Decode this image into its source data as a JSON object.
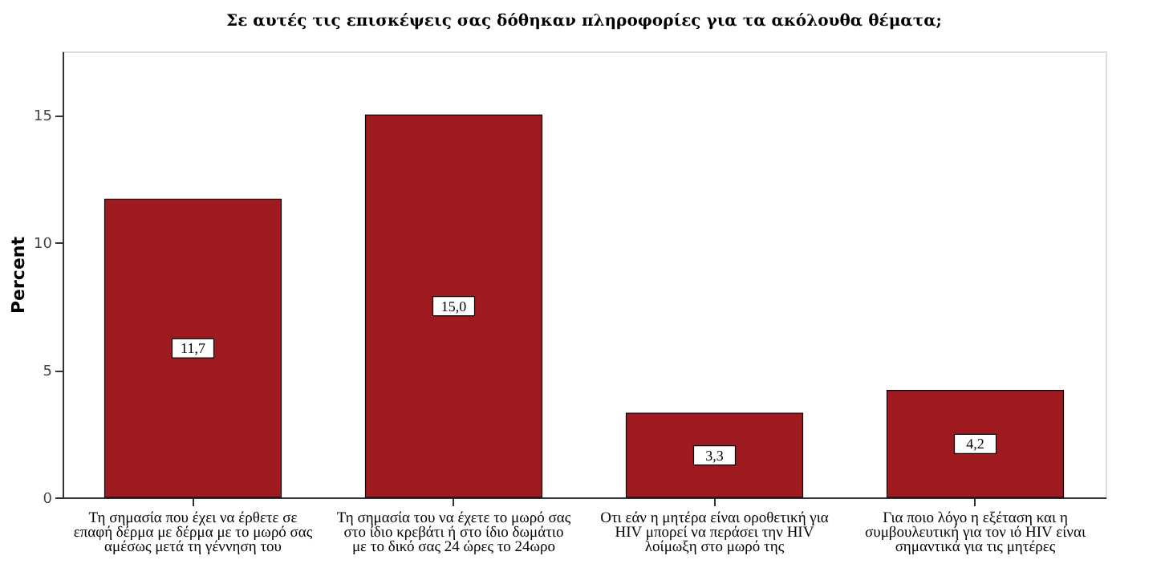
{
  "chart_data": {
    "type": "bar",
    "title": "Σε αυτές τις επισκέψεις σας δόθηκαν πληροφορίες για τα ακόλουθα θέματα;",
    "ylabel": "Percent",
    "categories": [
      "Τη σημασία που έχει να έρθετε σε επαφή δέρμα με δέρμα με το μωρό σας αμέσως μετά τη γέννηση του",
      "Τη σημασία του να έχετε το μωρό σας στο ίδιο κρεβάτι ή στο ίδιο δωμάτιο με το δικό σας 24 ώρες το 24ωρο",
      "Οτι εάν η μητέρα είναι οροθετική για HIV μπορεί να περάσει την HIV λοίμωξη στο μωρό της",
      "Για ποιο λόγο η εξέταση και η συμβουλευτική για τον ιό HIV είναι σημαντικά για τις μητέρες"
    ],
    "values": [
      11.7,
      15.0,
      3.3,
      4.2
    ],
    "value_labels": [
      "11,7",
      "15,0",
      "3,3",
      "4,2"
    ],
    "color": "#9e1a1e",
    "ylim": [
      0,
      17.5
    ],
    "yticks": [
      0,
      5,
      10,
      15
    ],
    "grid": false
  }
}
